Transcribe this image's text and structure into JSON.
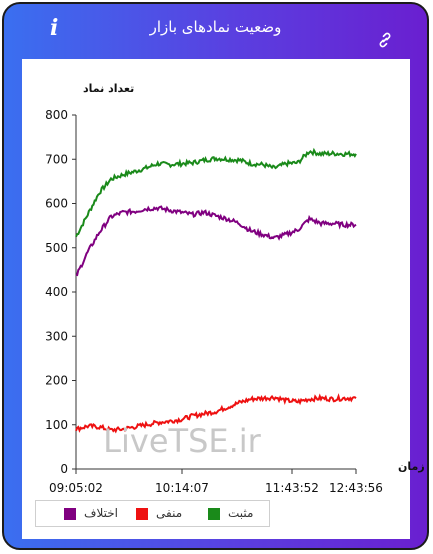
{
  "window": {
    "title": "وضعیت نمادهای بازار",
    "info_icon": "i",
    "link_icon": "link-icon"
  },
  "watermark": "LiveTSE.ir",
  "legend": [
    {
      "label": "مثبت",
      "color": "#1a8a1a"
    },
    {
      "label": "منفی",
      "color": "#ee1111"
    },
    {
      "label": "اختلاف",
      "color": "#800080"
    }
  ],
  "chart_data": {
    "type": "line",
    "ylabel": "تعداد نماد",
    "xlabel": "زمان",
    "ylim": [
      0,
      800
    ],
    "yticks": [
      0,
      100,
      200,
      300,
      400,
      500,
      600,
      700,
      800
    ],
    "xticks": [
      "09:05:02",
      "10:14:07",
      "11:43:52",
      "12:43:56"
    ],
    "grid": false,
    "legend_position": "bottom-left",
    "x": [
      "09:05",
      "09:10",
      "09:15",
      "09:20",
      "09:25",
      "09:30",
      "09:35",
      "09:40",
      "09:45",
      "09:50",
      "10:00",
      "10:14",
      "10:30",
      "10:45",
      "11:00",
      "11:15",
      "11:30",
      "11:43",
      "11:50",
      "12:00",
      "12:05",
      "12:10",
      "12:20",
      "12:30",
      "12:43"
    ],
    "series": [
      {
        "name": "مثبت",
        "color": "#1a8a1a",
        "values": [
          525,
          575,
          625,
          655,
          665,
          672,
          680,
          690,
          688,
          690,
          692,
          698,
          702,
          700,
          698,
          690,
          688,
          680,
          690,
          692,
          718,
          712,
          713,
          712,
          712
        ]
      },
      {
        "name": "منفی",
        "color": "#ee1111",
        "values": [
          90,
          97,
          95,
          88,
          90,
          95,
          100,
          105,
          108,
          112,
          120,
          125,
          130,
          140,
          150,
          158,
          160,
          162,
          155,
          152,
          158,
          160,
          158,
          160,
          160
        ]
      },
      {
        "name": "اختلاف",
        "color": "#800080",
        "values": [
          435,
          490,
          535,
          570,
          580,
          582,
          588,
          590,
          585,
          580,
          575,
          580,
          572,
          565,
          555,
          538,
          530,
          522,
          530,
          540,
          565,
          555,
          555,
          552,
          552
        ]
      }
    ]
  }
}
